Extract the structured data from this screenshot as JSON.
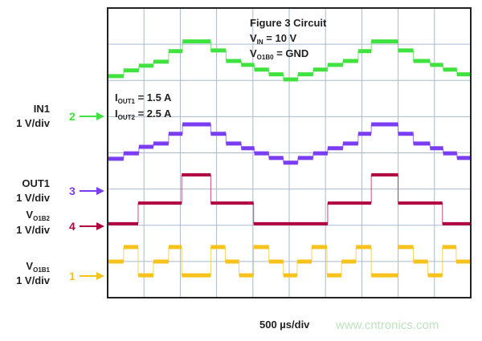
{
  "chart_data": {
    "type": "line",
    "subtype": "oscilloscope-step",
    "annotations": {
      "title": "Figure 3 Circuit",
      "vin": {
        "main": "V",
        "sub": "IN",
        "rest": " = 10 V"
      },
      "vo1b0": {
        "main": "V",
        "sub": "O1B0",
        "rest": " = GND"
      },
      "iout1": {
        "main": "I",
        "sub": "OUT1",
        "rest": " = 1.5 A"
      },
      "iout2": {
        "main": "I",
        "sub": "OUT2",
        "rest": " = 2.5 A"
      }
    },
    "xlabel": "500 µs/div",
    "x_unit": "µs",
    "xlim": [
      0,
      5000
    ],
    "grid": {
      "x_divisions": 10,
      "y_divisions": 8,
      "on": true
    },
    "channels": [
      {
        "marker": "2",
        "name": "IN1",
        "scale": "1 V/div",
        "color": "#3fe23f",
        "label_main": "IN1",
        "label_sub": "",
        "t": [
          0,
          220,
          430,
          630,
          840,
          1030,
          1420,
          1630,
          1840,
          2020,
          2220,
          2420,
          2620,
          2830,
          3030,
          3240,
          3450,
          3630,
          4000,
          4210,
          4440,
          4620,
          4810,
          5000
        ],
        "v": [
          1.11,
          1.27,
          1.4,
          1.51,
          1.8,
          2.07,
          1.82,
          1.53,
          1.42,
          1.29,
          1.16,
          1.02,
          1.16,
          1.29,
          1.42,
          1.53,
          1.8,
          2.07,
          1.82,
          1.53,
          1.42,
          1.29,
          1.16
        ]
      },
      {
        "marker": "3",
        "name": "OUT1",
        "scale": "1 V/div",
        "color": "#7a3df2",
        "label_main": "OUT1",
        "label_sub": "",
        "t": [
          0,
          220,
          430,
          630,
          840,
          1030,
          1420,
          1630,
          1840,
          2020,
          2220,
          2420,
          2620,
          2830,
          3030,
          3240,
          3450,
          3630,
          4000,
          4210,
          4440,
          4620,
          4810,
          5000
        ],
        "v": [
          0.89,
          1.04,
          1.22,
          1.31,
          1.58,
          1.84,
          1.58,
          1.31,
          1.18,
          1.04,
          0.91,
          0.78,
          0.91,
          1.04,
          1.18,
          1.31,
          1.58,
          1.84,
          1.58,
          1.31,
          1.18,
          1.04,
          0.91
        ]
      },
      {
        "marker": "4",
        "name": "V O1B2",
        "scale": "1 V/div",
        "color": "#b0023f",
        "label_main": "V",
        "label_sub": "O1B2",
        "t": [
          0,
          420,
          1020,
          1420,
          2010,
          3030,
          3630,
          4000,
          4610,
          5000
        ],
        "v": [
          0.07,
          0.64,
          1.42,
          0.64,
          0.07,
          0.64,
          1.42,
          0.64,
          0.07
        ]
      },
      {
        "marker": "1",
        "name": "V O1B1",
        "scale": "1 V/div",
        "color": "#f7c21c",
        "label_main": "V",
        "label_sub": "O1B1",
        "t": [
          0,
          220,
          420,
          630,
          840,
          1020,
          1420,
          1620,
          1810,
          2010,
          2220,
          2420,
          2610,
          2810,
          3020,
          3220,
          3420,
          3630,
          4000,
          4210,
          4410,
          4610,
          4800,
          5000
        ],
        "v": [
          0.4,
          0.8,
          0.02,
          0.4,
          0.8,
          0.02,
          0.8,
          0.4,
          0.02,
          0.8,
          0.4,
          0.02,
          0.4,
          0.8,
          0.02,
          0.4,
          0.8,
          0.02,
          0.8,
          0.4,
          0.02,
          0.8,
          0.4
        ]
      }
    ]
  },
  "watermark": "www.cntronics.com",
  "colors": {
    "grid": "#a9bacd",
    "frame": "#222222",
    "watermark": "#bfe3bf"
  }
}
